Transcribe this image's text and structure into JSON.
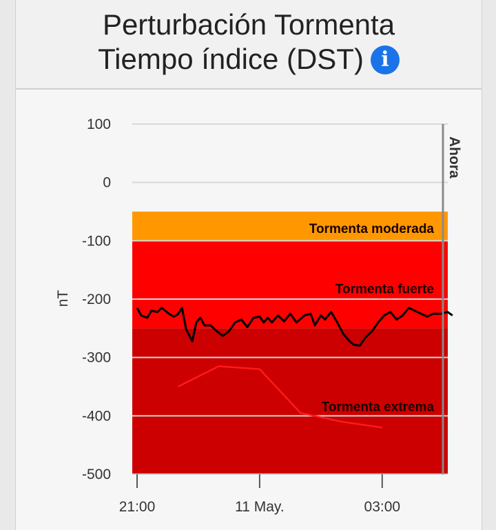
{
  "header": {
    "title_line1": "Perturbación Tormenta",
    "title_line2": "Tiempo índice (DST)",
    "info_icon": "info-icon",
    "info_symbol": "i",
    "info_color": "#1a73e8"
  },
  "chart_data": {
    "type": "line",
    "ylabel": "nT",
    "ylim": [
      -500,
      100
    ],
    "y_ticks": [
      100,
      0,
      -100,
      -200,
      -300,
      -400,
      -500
    ],
    "x_ticks": [
      "21:00",
      "11 May.",
      "03:00"
    ],
    "now_label": "Ahora",
    "bands": [
      {
        "label": "Tormenta moderada",
        "from": -50,
        "to": -100,
        "color": "#ff9800"
      },
      {
        "label": "Tormenta fuerte",
        "from": -100,
        "to": -250,
        "color": "#ff0000"
      },
      {
        "label": "Tormenta extrema",
        "from": -250,
        "to": -500,
        "color": "#cc0000"
      }
    ],
    "series": [
      {
        "color": "#000000",
        "x": [
          0,
          0.1,
          0.25,
          0.35,
          0.5,
          0.6,
          0.8,
          0.9,
          1.0,
          1.1,
          1.2,
          1.35,
          1.45,
          1.55,
          1.65,
          1.8,
          1.95,
          2.1,
          2.25,
          2.4,
          2.55,
          2.7,
          2.85,
          3.0,
          3.1,
          3.2,
          3.3,
          3.45,
          3.6,
          3.75,
          3.9,
          4.1,
          4.25,
          4.35,
          4.5,
          4.6,
          4.75,
          4.9,
          5.05,
          5.2,
          5.3,
          5.45,
          5.6,
          5.75,
          5.9,
          6.05,
          6.2,
          6.35,
          6.5,
          6.65,
          6.8,
          6.95,
          7.1,
          7.25,
          7.45,
          7.6,
          7.72
        ],
        "y": [
          -215,
          -228,
          -232,
          -220,
          -222,
          -215,
          -226,
          -230,
          -226,
          -215,
          -252,
          -272,
          -240,
          -232,
          -245,
          -245,
          -255,
          -263,
          -255,
          -240,
          -235,
          -248,
          -232,
          -230,
          -240,
          -232,
          -240,
          -228,
          -238,
          -225,
          -240,
          -228,
          -225,
          -245,
          -228,
          -235,
          -222,
          -240,
          -260,
          -272,
          -278,
          -280,
          -265,
          -255,
          -240,
          -228,
          -222,
          -235,
          -228,
          -215,
          -220,
          -225,
          -230,
          -225,
          -225,
          -222,
          -228
        ]
      },
      {
        "color": "#ff1a1a",
        "x": [
          1.0,
          2.0,
          3.0,
          4.0,
          5.0,
          6.0
        ],
        "y": [
          -350,
          -315,
          -320,
          -395,
          -410,
          -420
        ]
      }
    ]
  }
}
